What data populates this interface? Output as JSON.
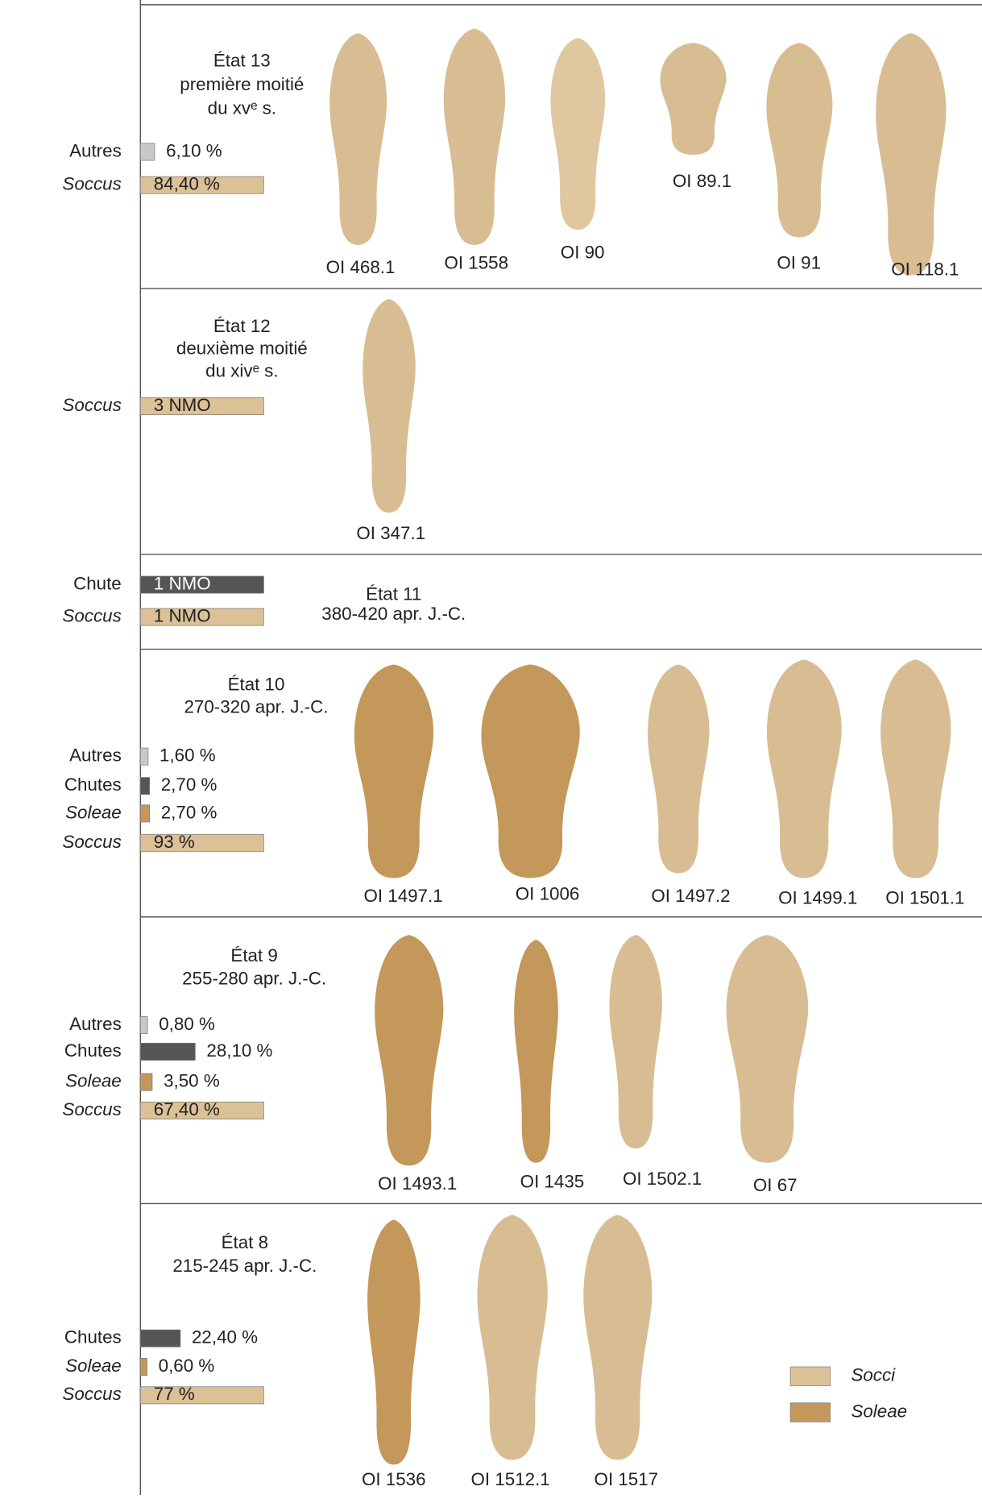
{
  "panels": [
    {
      "title": "État 13",
      "period": [
        "première moitié",
        "du xvᵉ s."
      ],
      "bars": [
        {
          "label": "Autres",
          "value": 6.1,
          "value_label": "6,10 %",
          "color": "#c8c8c8"
        },
        {
          "label": "Soccus",
          "value": 84.4,
          "value_label": "84,40 %",
          "color": "#dcc197",
          "italic": true
        }
      ],
      "shoes": [
        {
          "label": "OI 468.1",
          "color": "#d8bd93"
        },
        {
          "label": "OI 1558",
          "color": "#d8bd93"
        },
        {
          "label": "OI 90",
          "color": "#dfc8a0"
        },
        {
          "label": "OI 89.1",
          "color": "#d8bd93"
        },
        {
          "label": "OI 91",
          "color": "#d8bd93"
        },
        {
          "label": "OI 118.1",
          "color": "#d8bd93"
        }
      ]
    },
    {
      "title": "État 12",
      "period": [
        "deuxième moitié",
        "du xivᵉ s."
      ],
      "bars": [
        {
          "label": "Soccus",
          "value": 3,
          "value_label": "3 NMO",
          "color": "#dcc197",
          "italic": true
        }
      ],
      "shoes": [
        {
          "label": "OI 347.1",
          "color": "#d8bd93"
        }
      ]
    },
    {
      "title": "État 11",
      "period": [
        "380-420 apr. J.-C."
      ],
      "bars": [
        {
          "label": "Chute",
          "value": 1,
          "value_label": "1 NMO",
          "color": "#555555"
        },
        {
          "label": "Soccus",
          "value": 1,
          "value_label": "1 NMO",
          "color": "#dcc197",
          "italic": true
        }
      ],
      "shoes": []
    },
    {
      "title": "État 10",
      "period": [
        "270-320 apr. J.-C."
      ],
      "bars": [
        {
          "label": "Autres",
          "value": 1.6,
          "value_label": "1,60 %",
          "color": "#c8c8c8"
        },
        {
          "label": "Chutes",
          "value": 2.7,
          "value_label": "2,70 %",
          "color": "#555555"
        },
        {
          "label": "Soleae",
          "value": 2.7,
          "value_label": "2,70 %",
          "color": "#c4975a",
          "italic": true
        },
        {
          "label": "Soccus",
          "value": 93,
          "value_label": "93 %",
          "color": "#dcc197",
          "italic": true
        }
      ],
      "shoes": [
        {
          "label": "OI 1497.1",
          "color": "#c4975a"
        },
        {
          "label": "OI 1006",
          "color": "#c4975a"
        },
        {
          "label": "OI 1497.2",
          "color": "#d8bd93"
        },
        {
          "label": "OI 1499.1",
          "color": "#d8bd93"
        },
        {
          "label": "OI 1501.1",
          "color": "#d8bd93"
        }
      ]
    },
    {
      "title": "État 9",
      "period": [
        "255-280 apr. J.-C."
      ],
      "bars": [
        {
          "label": "Autres",
          "value": 0.8,
          "value_label": "0,80 %",
          "color": "#c8c8c8"
        },
        {
          "label": "Chutes",
          "value": 28.1,
          "value_label": "28,10 %",
          "color": "#555555"
        },
        {
          "label": "Soleae",
          "value": 3.5,
          "value_label": "3,50 %",
          "color": "#c4975a",
          "italic": true
        },
        {
          "label": "Soccus",
          "value": 67.4,
          "value_label": "67,40 %",
          "color": "#dcc197",
          "italic": true
        }
      ],
      "shoes": [
        {
          "label": "OI 1493.1",
          "color": "#c4975a"
        },
        {
          "label": "OI 1435",
          "color": "#c4975a"
        },
        {
          "label": "OI 1502.1",
          "color": "#d8bd93"
        },
        {
          "label": "OI 67",
          "color": "#d8bd93"
        }
      ]
    },
    {
      "title": "État 8",
      "period": [
        "215-245 apr. J.-C."
      ],
      "bars": [
        {
          "label": "Chutes",
          "value": 22.4,
          "value_label": "22,40 %",
          "color": "#555555"
        },
        {
          "label": "Soleae",
          "value": 0.6,
          "value_label": "0,60 %",
          "color": "#c4975a",
          "italic": true
        },
        {
          "label": "Soccus",
          "value": 77,
          "value_label": "77 %",
          "color": "#dcc197",
          "italic": true
        }
      ],
      "shoes": [
        {
          "label": "OI 1536",
          "color": "#c4975a"
        },
        {
          "label": "OI 1512.1",
          "color": "#d8bd93"
        },
        {
          "label": "OI 1517",
          "color": "#d8bd93"
        }
      ]
    }
  ],
  "legend": [
    {
      "label": "Socci",
      "color": "#dcc197"
    },
    {
      "label": "Soleae",
      "color": "#c4975a"
    }
  ]
}
